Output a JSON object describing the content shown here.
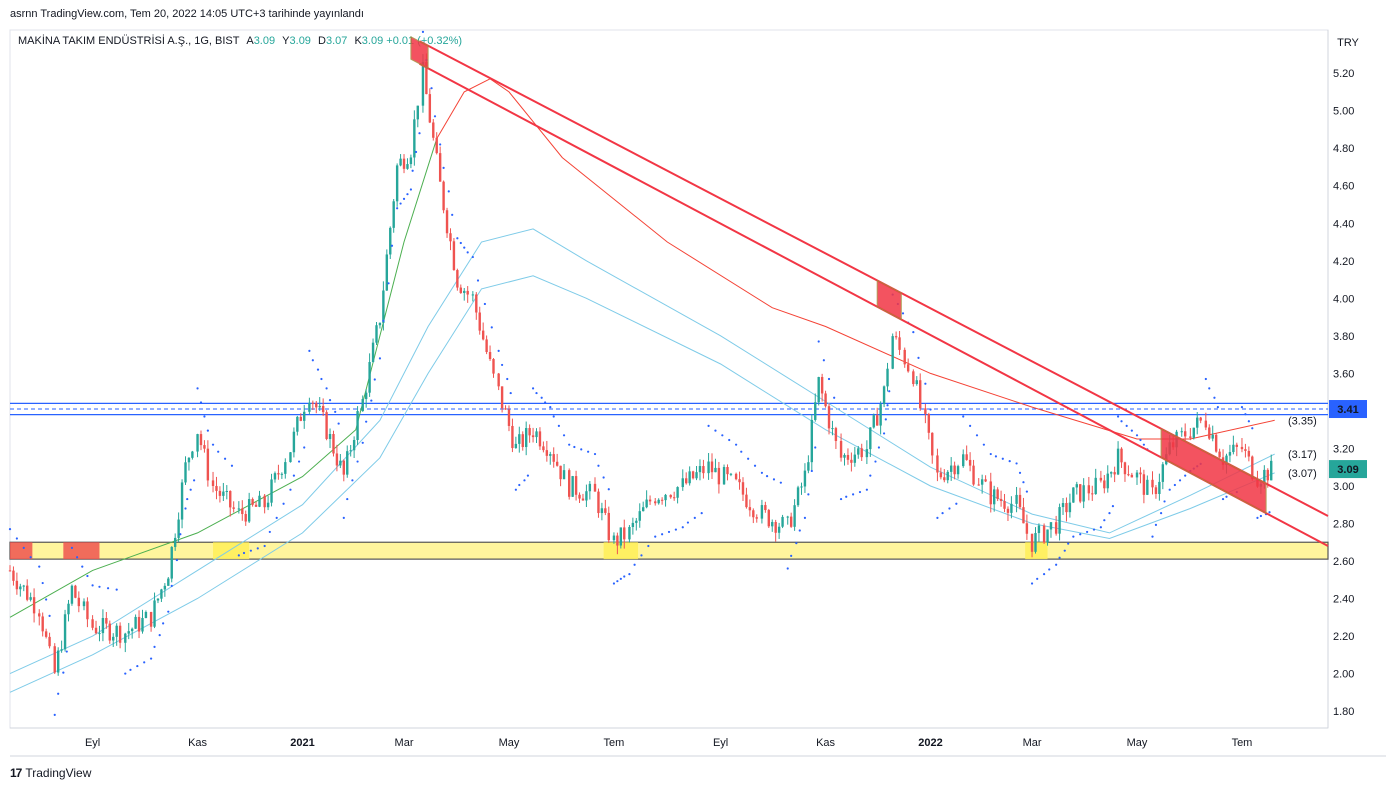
{
  "header": {
    "text": "asrnn TradingView.com, Tem 20, 2022 14:05 UTC+3 tarihinde yayınlandı"
  },
  "legend": {
    "symbol": "MAKİNA TAKIM ENDÜSTRİSİ A.Ş., 1G, BIST",
    "open_label": "A",
    "open": "3.09",
    "high_label": "Y",
    "high": "3.09",
    "low_label": "D",
    "low": "3.07",
    "close_label": "K",
    "close": "3.09",
    "change": "+0.01 (+0.32%)"
  },
  "footer": {
    "brand": "TradingView",
    "logo": "17"
  },
  "colors": {
    "up": "#26a69a",
    "down": "#ef5350",
    "ma_green": "#4caf50",
    "ma_red": "#f44336",
    "ma_blue": "#7ecbe8",
    "channel": "#f23645",
    "zone": "#fff59d",
    "sar": "#2962ff",
    "level": "#2962ff"
  },
  "chart_data": {
    "type": "candlestick",
    "currency": "TRY",
    "y_ticks": [
      "5.20",
      "5.00",
      "4.80",
      "4.60",
      "4.40",
      "4.20",
      "4.00",
      "3.80",
      "3.60",
      "3.40",
      "3.20",
      "3.00",
      "2.80",
      "2.60",
      "2.40",
      "2.20",
      "2.00",
      "1.80"
    ],
    "ylim": [
      1.71,
      5.43
    ],
    "x_ticks": [
      "Eyl",
      "Kas",
      "2021",
      "Mar",
      "May",
      "Tem",
      "Eyl",
      "Kas",
      "2022",
      "Mar",
      "May",
      "Tem"
    ],
    "x_tick_dates": [
      "2020-09-01",
      "2020-11-01",
      "2021-01-01",
      "2021-03-01",
      "2021-05-01",
      "2021-07-01",
      "2021-09-01",
      "2021-11-01",
      "2022-01-01",
      "2022-03-01",
      "2022-05-01",
      "2022-07-01"
    ],
    "x_range": [
      "2020-07-15",
      "2022-08-20"
    ],
    "last_price": "3.09",
    "level_labels": [
      "3.41",
      "(3.35)",
      "(3.17)",
      "(3.07)"
    ],
    "level_values": [
      3.41,
      3.35,
      3.17,
      3.07
    ],
    "horizontal_levels": [
      3.44,
      3.38
    ],
    "support_zone": [
      2.61,
      2.7
    ],
    "closes": [
      {
        "d": "2020-07-15",
        "c": 2.55
      },
      {
        "d": "2020-08-01",
        "c": 2.35
      },
      {
        "d": "2020-08-10",
        "c": 2.0
      },
      {
        "d": "2020-08-20",
        "c": 2.45
      },
      {
        "d": "2020-09-01",
        "c": 2.25
      },
      {
        "d": "2020-09-20",
        "c": 2.22
      },
      {
        "d": "2020-10-05",
        "c": 2.3
      },
      {
        "d": "2020-10-15",
        "c": 2.55
      },
      {
        "d": "2020-10-25",
        "c": 3.1
      },
      {
        "d": "2020-11-01",
        "c": 3.3
      },
      {
        "d": "2020-11-10",
        "c": 3.0
      },
      {
        "d": "2020-11-25",
        "c": 2.85
      },
      {
        "d": "2020-12-10",
        "c": 2.9
      },
      {
        "d": "2020-12-25",
        "c": 3.2
      },
      {
        "d": "2021-01-05",
        "c": 3.5
      },
      {
        "d": "2021-01-15",
        "c": 3.3
      },
      {
        "d": "2021-01-25",
        "c": 3.05
      },
      {
        "d": "2021-02-05",
        "c": 3.45
      },
      {
        "d": "2021-02-15",
        "c": 3.9
      },
      {
        "d": "2021-02-25",
        "c": 4.7
      },
      {
        "d": "2021-03-05",
        "c": 4.8
      },
      {
        "d": "2021-03-12",
        "c": 5.2
      },
      {
        "d": "2021-03-22",
        "c": 4.6
      },
      {
        "d": "2021-04-01",
        "c": 4.1
      },
      {
        "d": "2021-04-10",
        "c": 4.0
      },
      {
        "d": "2021-04-25",
        "c": 3.5
      },
      {
        "d": "2021-05-05",
        "c": 3.2
      },
      {
        "d": "2021-05-15",
        "c": 3.3
      },
      {
        "d": "2021-05-25",
        "c": 3.2
      },
      {
        "d": "2021-06-05",
        "c": 3.0
      },
      {
        "d": "2021-06-20",
        "c": 2.95
      },
      {
        "d": "2021-07-01",
        "c": 2.7
      },
      {
        "d": "2021-07-10",
        "c": 2.75
      },
      {
        "d": "2021-07-25",
        "c": 2.95
      },
      {
        "d": "2021-08-10",
        "c": 3.0
      },
      {
        "d": "2021-08-25",
        "c": 3.1
      },
      {
        "d": "2021-09-10",
        "c": 3.0
      },
      {
        "d": "2021-09-25",
        "c": 2.85
      },
      {
        "d": "2021-10-10",
        "c": 2.78
      },
      {
        "d": "2021-10-20",
        "c": 3.05
      },
      {
        "d": "2021-10-28",
        "c": 3.55
      },
      {
        "d": "2021-11-10",
        "c": 3.15
      },
      {
        "d": "2021-11-25",
        "c": 3.2
      },
      {
        "d": "2021-12-05",
        "c": 3.5
      },
      {
        "d": "2021-12-10",
        "c": 3.8
      },
      {
        "d": "2021-12-22",
        "c": 3.6
      },
      {
        "d": "2022-01-05",
        "c": 3.05
      },
      {
        "d": "2022-01-20",
        "c": 3.15
      },
      {
        "d": "2022-02-05",
        "c": 2.95
      },
      {
        "d": "2022-02-20",
        "c": 2.9
      },
      {
        "d": "2022-03-01",
        "c": 2.7
      },
      {
        "d": "2022-03-15",
        "c": 2.8
      },
      {
        "d": "2022-03-25",
        "c": 2.95
      },
      {
        "d": "2022-04-10",
        "c": 3.0
      },
      {
        "d": "2022-04-20",
        "c": 3.15
      },
      {
        "d": "2022-05-01",
        "c": 3.05
      },
      {
        "d": "2022-05-10",
        "c": 2.95
      },
      {
        "d": "2022-05-20",
        "c": 3.2
      },
      {
        "d": "2022-06-01",
        "c": 3.3
      },
      {
        "d": "2022-06-10",
        "c": 3.35
      },
      {
        "d": "2022-06-20",
        "c": 3.15
      },
      {
        "d": "2022-07-01",
        "c": 3.2
      },
      {
        "d": "2022-07-10",
        "c": 3.05
      },
      {
        "d": "2022-07-20",
        "c": 3.09
      }
    ],
    "ma_green": [
      {
        "d": "2020-07-15",
        "v": 2.3
      },
      {
        "d": "2020-09-01",
        "v": 2.55
      },
      {
        "d": "2020-11-01",
        "v": 2.75
      },
      {
        "d": "2021-01-01",
        "v": 3.05
      },
      {
        "d": "2021-02-01",
        "v": 3.3
      },
      {
        "d": "2021-03-01",
        "v": 4.3
      },
      {
        "d": "2021-03-20",
        "v": 4.85
      },
      {
        "d": "2021-04-05",
        "v": 5.1
      },
      {
        "d": "2021-04-20",
        "v": 5.17
      },
      {
        "d": "2021-05-01",
        "v": 5.1
      },
      {
        "d": "2021-06-01",
        "v": 4.75
      },
      {
        "d": "2021-08-01",
        "v": 4.3
      },
      {
        "d": "2021-10-01",
        "v": 3.95
      },
      {
        "d": "2021-11-01",
        "v": 3.85
      },
      {
        "d": "2022-01-01",
        "v": 3.6
      },
      {
        "d": "2022-03-01",
        "v": 3.42
      },
      {
        "d": "2022-05-01",
        "v": 3.25
      },
      {
        "d": "2022-06-01",
        "v": 3.25
      },
      {
        "d": "2022-07-20",
        "v": 3.35
      }
    ],
    "ma_blue_upper": [
      {
        "d": "2020-07-15",
        "v": 2.0
      },
      {
        "d": "2020-09-01",
        "v": 2.2
      },
      {
        "d": "2020-11-01",
        "v": 2.55
      },
      {
        "d": "2021-01-01",
        "v": 2.9
      },
      {
        "d": "2021-02-15",
        "v": 3.35
      },
      {
        "d": "2021-03-15",
        "v": 3.85
      },
      {
        "d": "2021-04-15",
        "v": 4.3
      },
      {
        "d": "2021-05-15",
        "v": 4.37
      },
      {
        "d": "2021-06-15",
        "v": 4.2
      },
      {
        "d": "2021-09-01",
        "v": 3.8
      },
      {
        "d": "2021-11-01",
        "v": 3.45
      },
      {
        "d": "2022-01-01",
        "v": 3.1
      },
      {
        "d": "2022-03-01",
        "v": 2.85
      },
      {
        "d": "2022-04-15",
        "v": 2.75
      },
      {
        "d": "2022-06-01",
        "v": 2.95
      },
      {
        "d": "2022-07-20",
        "v": 3.17
      }
    ],
    "ma_blue_lower": [
      {
        "d": "2020-07-15",
        "v": 1.9
      },
      {
        "d": "2020-09-01",
        "v": 2.1
      },
      {
        "d": "2020-11-01",
        "v": 2.4
      },
      {
        "d": "2021-01-01",
        "v": 2.75
      },
      {
        "d": "2021-02-15",
        "v": 3.15
      },
      {
        "d": "2021-03-15",
        "v": 3.6
      },
      {
        "d": "2021-04-15",
        "v": 4.05
      },
      {
        "d": "2021-05-15",
        "v": 4.12
      },
      {
        "d": "2021-06-15",
        "v": 4.0
      },
      {
        "d": "2021-09-01",
        "v": 3.65
      },
      {
        "d": "2021-11-01",
        "v": 3.3
      },
      {
        "d": "2022-01-01",
        "v": 3.0
      },
      {
        "d": "2022-03-01",
        "v": 2.8
      },
      {
        "d": "2022-04-15",
        "v": 2.72
      },
      {
        "d": "2022-06-01",
        "v": 2.88
      },
      {
        "d": "2022-07-20",
        "v": 3.07
      }
    ],
    "channel_upper": {
      "start": {
        "d": "2021-03-10",
        "v": 5.37
      },
      "end": {
        "d": "2022-08-20",
        "v": 2.84
      }
    },
    "channel_lower": {
      "start": {
        "d": "2021-03-10",
        "v": 5.25
      },
      "end": {
        "d": "2022-08-20",
        "v": 2.68
      }
    },
    "channel_boxes": [
      {
        "d1": "2021-03-05",
        "d2": "2021-03-15",
        "v_top": 5.37,
        "v_bot": 5.27
      },
      {
        "d1": "2021-12-01",
        "d2": "2021-12-15",
        "v_top": 4.02,
        "v_bot": 3.9
      },
      {
        "d1": "2022-05-15",
        "d2": "2022-07-15",
        "v_top": 3.17,
        "v_bot": 2.98
      }
    ],
    "zone_highlights": [
      {
        "d1": "2020-07-15",
        "d2": "2020-07-28",
        "color": "#ef5350"
      },
      {
        "d1": "2020-08-15",
        "d2": "2020-09-05",
        "color": "#ef5350"
      },
      {
        "d1": "2020-11-10",
        "d2": "2020-12-01",
        "color": "#ffee58"
      },
      {
        "d1": "2021-06-25",
        "d2": "2021-07-15",
        "color": "#ffee58"
      },
      {
        "d1": "2022-02-25",
        "d2": "2022-03-10",
        "color": "#ffee58"
      }
    ]
  }
}
